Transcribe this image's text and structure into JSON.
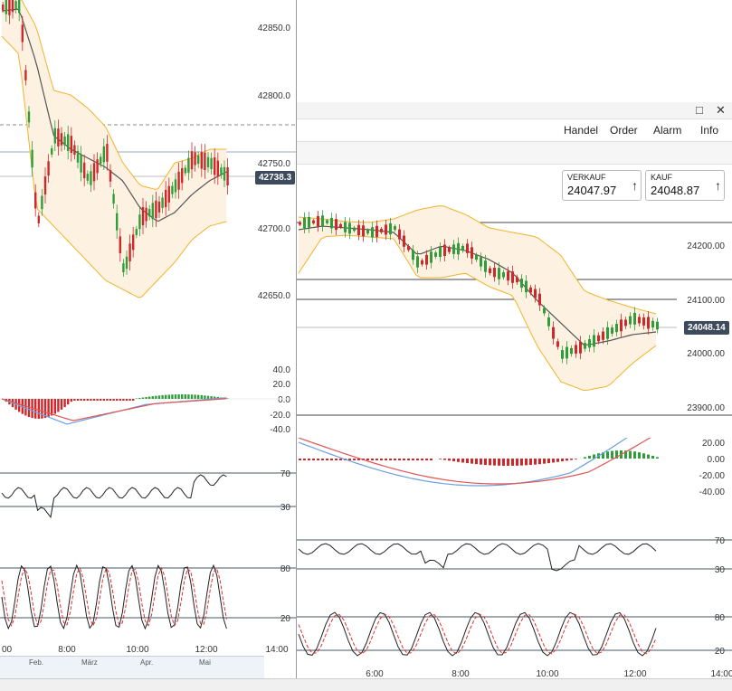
{
  "left_chart": {
    "price_axis": [
      "42850.0",
      "42800.0",
      "42750.0",
      "42700.0",
      "42650.0"
    ],
    "current_price": "42738.3",
    "macd_axis": [
      "40.0",
      "20.0",
      "0.0",
      "-20.0",
      "-40.0"
    ],
    "rsi_levels": [
      "70",
      "30"
    ],
    "stoch_levels": [
      "80",
      "20"
    ],
    "time_axis": [
      "00",
      "8:00",
      "10:00",
      "12:00",
      "14:00"
    ],
    "navigator_months": [
      "Feb.",
      "März",
      "Apr.",
      "Mai"
    ]
  },
  "right_window": {
    "menu": [
      "Handel",
      "Order",
      "Alarm",
      "Info"
    ],
    "sell": {
      "label": "VERKAUF",
      "value": "24047.97"
    },
    "buy": {
      "label": "KAUF",
      "value": "24048.87"
    },
    "price_axis": [
      "24200.00",
      "24100.00",
      "24000.00",
      "23900.00"
    ],
    "current_price": "24048.14",
    "macd_axis": [
      "20.00",
      "0.00",
      "-20.00",
      "-40.00"
    ],
    "rsi_levels": [
      "70",
      "30"
    ],
    "stoch_levels": [
      "80",
      "20"
    ],
    "time_axis": [
      "6:00",
      "8:00",
      "10:00",
      "12:00",
      "14:00"
    ]
  },
  "colors": {
    "up": "#2f9e3a",
    "down": "#d0282a",
    "band": "#f0b429",
    "ma": "#555555",
    "price_tag": "#3d4a5c"
  },
  "icons": {
    "window_restore": "restore-icon",
    "window_close": "close-icon",
    "arrow": "up-arrow-icon"
  }
}
